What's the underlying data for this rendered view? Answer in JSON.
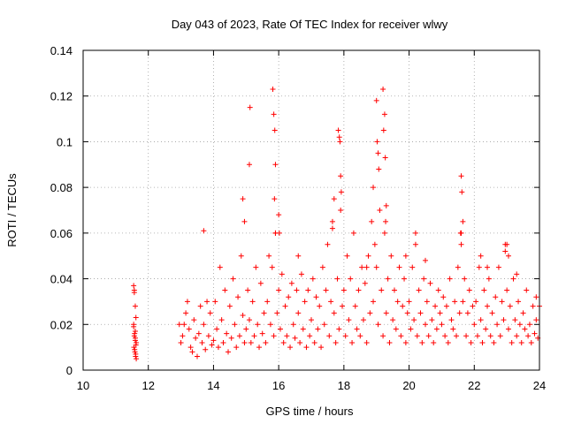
{
  "chart_data": {
    "type": "scatter",
    "title": "Day 043 of 2023, Rate Of TEC Index for receiver wlwy",
    "xlabel": "GPS time / hours",
    "ylabel": "ROTI / TECUs",
    "xlim": [
      10,
      24
    ],
    "ylim": [
      0,
      0.14
    ],
    "xticks": [
      10,
      12,
      14,
      16,
      18,
      20,
      22,
      24
    ],
    "xtick_labels": [
      "10",
      "12",
      "14",
      "16",
      "18",
      "20",
      "22",
      "24"
    ],
    "yticks": [
      0,
      0.02,
      0.04,
      0.06,
      0.08,
      0.1,
      0.12,
      0.14
    ],
    "ytick_labels": [
      "0",
      "0.02",
      "0.04",
      "0.06",
      "0.08",
      "0.1",
      "0.12",
      "0.14"
    ],
    "grid": true,
    "marker": "plus",
    "color": "#ff0000",
    "series": [
      {
        "name": "ROTI",
        "x": [
          11.55,
          11.57,
          11.6,
          11.62,
          11.55,
          11.58,
          11.6,
          11.63,
          11.56,
          11.59,
          11.61,
          11.57,
          11.6,
          11.62,
          11.58,
          11.61,
          11.55,
          11.6,
          11.63,
          11.57,
          13.0,
          13.05,
          13.1,
          13.15,
          13.2,
          13.25,
          13.3,
          13.35,
          13.4,
          13.45,
          13.5,
          13.55,
          13.6,
          13.65,
          13.7,
          13.75,
          13.8,
          13.85,
          13.9,
          13.95,
          14.0,
          14.05,
          14.1,
          14.15,
          14.2,
          14.25,
          14.3,
          14.35,
          14.4,
          14.45,
          14.5,
          14.55,
          14.6,
          14.65,
          14.7,
          14.75,
          14.8,
          14.85,
          14.9,
          14.95,
          15.0,
          15.05,
          15.1,
          15.15,
          15.2,
          15.25,
          15.3,
          15.35,
          15.4,
          15.45,
          15.5,
          15.55,
          15.6,
          15.65,
          15.7,
          15.75,
          15.8,
          15.85,
          15.9,
          15.95,
          16.0,
          16.05,
          16.1,
          16.15,
          16.2,
          16.25,
          16.3,
          16.35,
          16.4,
          16.45,
          16.5,
          16.55,
          16.6,
          16.65,
          16.7,
          16.75,
          16.8,
          16.85,
          16.9,
          16.95,
          17.0,
          17.05,
          17.1,
          17.15,
          17.2,
          17.25,
          17.3,
          17.35,
          17.4,
          17.45,
          17.5,
          17.55,
          17.6,
          17.65,
          17.7,
          17.75,
          17.8,
          17.85,
          17.9,
          17.95,
          18.0,
          18.05,
          18.1,
          18.15,
          18.2,
          18.25,
          18.3,
          18.35,
          18.4,
          18.45,
          18.5,
          18.55,
          18.6,
          18.65,
          18.7,
          18.75,
          18.8,
          18.85,
          18.9,
          18.95,
          19.0,
          19.05,
          19.1,
          19.15,
          19.2,
          19.25,
          19.3,
          19.35,
          19.4,
          19.45,
          19.5,
          19.55,
          19.6,
          19.65,
          19.7,
          19.75,
          19.8,
          19.85,
          19.9,
          19.95,
          20.0,
          20.05,
          20.1,
          20.15,
          20.2,
          20.25,
          20.3,
          20.35,
          20.4,
          20.45,
          20.5,
          20.55,
          20.6,
          20.65,
          20.7,
          20.75,
          20.8,
          20.85,
          20.9,
          20.95,
          21.0,
          21.05,
          21.1,
          21.15,
          21.2,
          21.25,
          21.3,
          21.35,
          21.4,
          21.45,
          21.5,
          21.55,
          21.6,
          21.65,
          21.7,
          21.75,
          21.8,
          21.85,
          21.9,
          21.95,
          22.0,
          22.05,
          22.1,
          22.15,
          22.2,
          22.25,
          22.3,
          22.35,
          22.4,
          22.45,
          22.5,
          22.55,
          22.6,
          22.65,
          22.7,
          22.75,
          22.8,
          22.85,
          22.9,
          22.95,
          23.0,
          23.05,
          23.1,
          23.15,
          23.2,
          23.25,
          23.3,
          23.35,
          23.4,
          23.45,
          23.5,
          23.55,
          23.6,
          23.65,
          23.7,
          23.75,
          23.8,
          23.85,
          23.9,
          23.95,
          15.1,
          15.12,
          15.82,
          15.85,
          15.88,
          15.9,
          15.87,
          16.0,
          16.02,
          17.83,
          17.86,
          17.88,
          17.9,
          17.92,
          17.65,
          17.7,
          19.0,
          19.02,
          19.05,
          19.07,
          19.2,
          19.25,
          19.22,
          19.27,
          18.9,
          19.3,
          19.28,
          21.6,
          21.62,
          21.65,
          21.58,
          21.6,
          23.0,
          22.95,
          23.05,
          13.7,
          14.9,
          14.95,
          15.9,
          16.6,
          18.7,
          19.9,
          20.2,
          20.5,
          22.2,
          22.4,
          23.3,
          23.9,
          24.0,
          12.95
        ],
        "y": [
          0.037,
          0.034,
          0.028,
          0.023,
          0.02,
          0.016,
          0.014,
          0.012,
          0.01,
          0.008,
          0.006,
          0.015,
          0.013,
          0.011,
          0.009,
          0.007,
          0.019,
          0.017,
          0.005,
          0.035,
          0.012,
          0.015,
          0.02,
          0.025,
          0.03,
          0.018,
          0.01,
          0.008,
          0.022,
          0.014,
          0.006,
          0.016,
          0.028,
          0.012,
          0.02,
          0.009,
          0.03,
          0.015,
          0.025,
          0.011,
          0.013,
          0.03,
          0.018,
          0.01,
          0.045,
          0.022,
          0.012,
          0.035,
          0.016,
          0.008,
          0.028,
          0.014,
          0.04,
          0.02,
          0.01,
          0.032,
          0.015,
          0.05,
          0.024,
          0.012,
          0.018,
          0.035,
          0.022,
          0.012,
          0.03,
          0.015,
          0.045,
          0.02,
          0.01,
          0.038,
          0.016,
          0.025,
          0.012,
          0.03,
          0.05,
          0.02,
          0.045,
          0.015,
          0.06,
          0.025,
          0.035,
          0.018,
          0.042,
          0.012,
          0.028,
          0.015,
          0.032,
          0.01,
          0.038,
          0.02,
          0.014,
          0.035,
          0.025,
          0.012,
          0.042,
          0.018,
          0.03,
          0.01,
          0.035,
          0.015,
          0.022,
          0.04,
          0.012,
          0.032,
          0.018,
          0.028,
          0.01,
          0.045,
          0.02,
          0.035,
          0.055,
          0.015,
          0.03,
          0.065,
          0.025,
          0.012,
          0.04,
          0.018,
          0.07,
          0.028,
          0.035,
          0.015,
          0.05,
          0.022,
          0.04,
          0.012,
          0.06,
          0.028,
          0.018,
          0.035,
          0.015,
          0.045,
          0.022,
          0.038,
          0.012,
          0.05,
          0.025,
          0.065,
          0.03,
          0.055,
          0.045,
          0.02,
          0.07,
          0.035,
          0.015,
          0.06,
          0.025,
          0.04,
          0.012,
          0.05,
          0.022,
          0.035,
          0.018,
          0.03,
          0.045,
          0.015,
          0.028,
          0.04,
          0.012,
          0.025,
          0.03,
          0.018,
          0.045,
          0.022,
          0.055,
          0.015,
          0.035,
          0.025,
          0.012,
          0.04,
          0.02,
          0.03,
          0.015,
          0.038,
          0.022,
          0.012,
          0.028,
          0.018,
          0.035,
          0.025,
          0.02,
          0.032,
          0.015,
          0.028,
          0.012,
          0.04,
          0.022,
          0.018,
          0.03,
          0.015,
          0.045,
          0.025,
          0.06,
          0.03,
          0.04,
          0.015,
          0.025,
          0.035,
          0.012,
          0.028,
          0.02,
          0.03,
          0.015,
          0.045,
          0.022,
          0.012,
          0.035,
          0.018,
          0.028,
          0.04,
          0.015,
          0.025,
          0.012,
          0.032,
          0.02,
          0.045,
          0.015,
          0.03,
          0.022,
          0.055,
          0.035,
          0.018,
          0.028,
          0.012,
          0.04,
          0.022,
          0.015,
          0.03,
          0.02,
          0.012,
          0.025,
          0.018,
          0.035,
          0.015,
          0.02,
          0.012,
          0.028,
          0.016,
          0.022,
          0.014,
          0.09,
          0.115,
          0.123,
          0.112,
          0.105,
          0.09,
          0.075,
          0.068,
          0.06,
          0.105,
          0.102,
          0.1,
          0.085,
          0.078,
          0.062,
          0.075,
          0.118,
          0.1,
          0.095,
          0.088,
          0.123,
          0.112,
          0.105,
          0.093,
          0.08,
          0.072,
          0.065,
          0.085,
          0.078,
          0.065,
          0.06,
          0.055,
          0.055,
          0.052,
          0.05,
          0.061,
          0.075,
          0.065,
          0.06,
          0.05,
          0.045,
          0.05,
          0.06,
          0.048,
          0.05,
          0.045,
          0.042,
          0.032,
          0.028,
          0.02
        ]
      }
    ]
  }
}
